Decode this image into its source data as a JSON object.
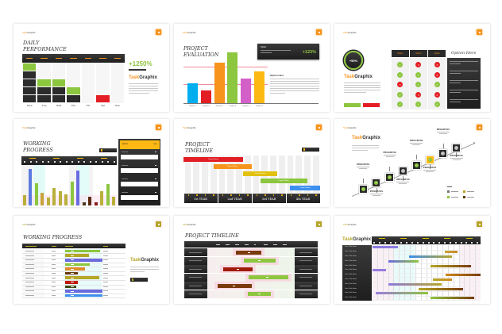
{
  "brand": {
    "task": "Task",
    "graphix": "Graphix"
  },
  "colors": {
    "orange": "#f7941d",
    "green": "#8dc63f",
    "red": "#e31e24",
    "dark": "#2b2b2b",
    "blue": "#00aeef",
    "purple": "#d35fc9",
    "yellow": "#fdb913",
    "olive": "#b5a628"
  },
  "daily": {
    "title_l1": "DAILY",
    "title_l2": "PERFORMANCE",
    "days": [
      "Mon",
      "Tue",
      "Wed",
      "Thu",
      "Fri",
      "Sat",
      "Sun"
    ],
    "blocks": [
      {
        "count": 5,
        "top": "green"
      },
      {
        "count": 3,
        "top": "green"
      },
      {
        "count": 3,
        "top": "green"
      },
      {
        "count": 2,
        "top": "green"
      },
      {
        "count": 0,
        "top": ""
      },
      {
        "count": 1,
        "top": "red"
      },
      {
        "count": 0,
        "top": ""
      }
    ],
    "stat": "+1250%"
  },
  "evaluation": {
    "title_l1": "PROJECT",
    "title_l2": "EVALUATION",
    "chart_data": {
      "type": "bar",
      "categories": [
        "Project 1",
        "Project 2",
        "Project 3",
        "Project 4",
        "Project 5",
        "Project 6"
      ],
      "values": [
        25,
        16,
        51,
        64,
        31,
        40
      ],
      "colors": [
        "#00aeef",
        "#e31e24",
        "#f7941d",
        "#8dc63f",
        "#d35fc9",
        "#fdb913"
      ],
      "ylim": [
        0,
        70
      ]
    },
    "box_label": "Option",
    "stat": "+123%",
    "option_heading": "Option Here"
  },
  "options": {
    "stat": "+50%",
    "column_headers": [
      "Option",
      "Option",
      "Option"
    ],
    "matrix": [
      [
        "check",
        "x",
        "x"
      ],
      [
        "check",
        "check",
        "x"
      ],
      [
        "x",
        "check",
        "check"
      ],
      [
        "check",
        "x",
        "x"
      ],
      [
        "check",
        "check",
        "check"
      ]
    ],
    "side_title": "Option Here"
  },
  "working": {
    "title_l1": "WORKING",
    "title_l2": "PROGRESS",
    "panel_headers": [
      "Option",
      "Qty"
    ],
    "chart_data": {
      "type": "bar",
      "values": [
        12,
        44,
        27,
        15,
        10,
        21,
        17,
        13,
        29,
        42,
        4,
        11,
        4,
        17,
        26,
        11
      ],
      "colors": [
        "#b8b03a",
        "#5b7be0",
        "#8dc63f",
        "#c9a23a",
        "#b8b03a",
        "#b8b03a",
        "#b8b03a",
        "#b8b03a",
        "#8dc63f",
        "#6b6be0",
        "#4a3a1a",
        "#5a2a10",
        "#8a1a1a",
        "#b8b03a",
        "#8dc63f",
        "#b8b03a"
      ],
      "ylim": [
        0,
        46
      ]
    }
  },
  "timeline": {
    "title_l1": "PROJECT",
    "title_l2": "TIMELINE",
    "bar_label": "Project Name",
    "bars": [
      {
        "start": 0,
        "end": 7,
        "color": "#e31e24"
      },
      {
        "start": 3.5,
        "end": 8,
        "color": "#f7941d"
      },
      {
        "start": 7,
        "end": 11,
        "color": "#e2c10e"
      },
      {
        "start": 9,
        "end": 14.5,
        "color": "#8dc63f"
      },
      {
        "start": 12.5,
        "end": 16,
        "color": "#3d8ff0"
      }
    ],
    "years": [
      "1st YEAR",
      "2nd YEAR",
      "3rd YEAR",
      "4th YEAR"
    ]
  },
  "progress_steps": {
    "step_label": "PROGRESS",
    "steps": [
      "green",
      "green",
      "green",
      "gray",
      "green",
      "yellow",
      "gray",
      "gray"
    ],
    "legend_colors": [
      "#777777",
      "#b5a628",
      "#8dc63f",
      "#5a3a10"
    ]
  },
  "working2": {
    "title": "WORKING PROGRESS",
    "rows": [
      {
        "p": 94,
        "c": "#8dc63f"
      },
      {
        "p": 64,
        "c": "#b5a628"
      },
      {
        "p": 100,
        "c": "#6b6be0"
      },
      {
        "p": 66,
        "c": "#8dc63f"
      },
      {
        "p": 53,
        "c": "#e08a2a"
      },
      {
        "p": 34,
        "c": "#6a3a10"
      },
      {
        "p": 91,
        "c": "#b5a628"
      },
      {
        "p": 34,
        "c": "#c0180c"
      },
      {
        "p": 30,
        "c": "#3a4a10"
      },
      {
        "p": 100,
        "c": "#6b6be0"
      },
      {
        "p": 100,
        "c": "#3d8ff0"
      }
    ]
  },
  "timeline2": {
    "title": "PROJECT TIMELINE",
    "rows": [
      {
        "s": 33,
        "e": 62,
        "c": "#7a3a0a"
      },
      {
        "s": 42,
        "e": 78,
        "c": "#8dc63f"
      },
      {
        "s": 18,
        "e": 52,
        "c": "#a01a0a"
      },
      {
        "s": 47,
        "e": 93,
        "c": "#8dc63f"
      },
      {
        "s": 12,
        "e": 51,
        "c": "#7a3a0a"
      },
      {
        "s": 46,
        "e": 73,
        "c": "#8dc63f"
      }
    ]
  },
  "gantt": {
    "task_label": "Your Task Here",
    "rows": [
      {
        "s": 1,
        "e": 24,
        "c1": "#8c7be0",
        "c2": "#8c7be0"
      },
      {
        "s": 67,
        "e": 79,
        "c1": "#c9a23a",
        "c2": "#c98a2a"
      },
      {
        "s": 34,
        "e": 74,
        "c1": "#3d8ff0",
        "c2": "#b5a628"
      },
      {
        "s": 15,
        "e": 43,
        "c1": "#6b6be0",
        "c2": "#8dc63f"
      },
      {
        "s": 54,
        "e": 91,
        "c1": "#b5a628",
        "c2": "#7a3a0a"
      },
      {
        "s": 1,
        "e": 13,
        "c1": "#9a7be0",
        "c2": "#9a7be0"
      },
      {
        "s": 68,
        "e": 100,
        "c1": "#d08a20",
        "c2": "#7a3a0a"
      },
      {
        "s": 56,
        "e": 74,
        "c1": "#b5a628",
        "c2": "#d08a20"
      },
      {
        "s": 15,
        "e": 64,
        "c1": "#8c7be0",
        "c2": "#b5a628"
      },
      {
        "s": 43,
        "e": 84,
        "c1": "#b5a628",
        "c2": "#7a3a0a"
      },
      {
        "s": 4,
        "e": 52,
        "c1": "#9a7be0",
        "c2": "#8dc63f"
      },
      {
        "s": 54,
        "e": 94,
        "c1": "#8dc63f",
        "c2": "#7a3a0a"
      }
    ]
  }
}
